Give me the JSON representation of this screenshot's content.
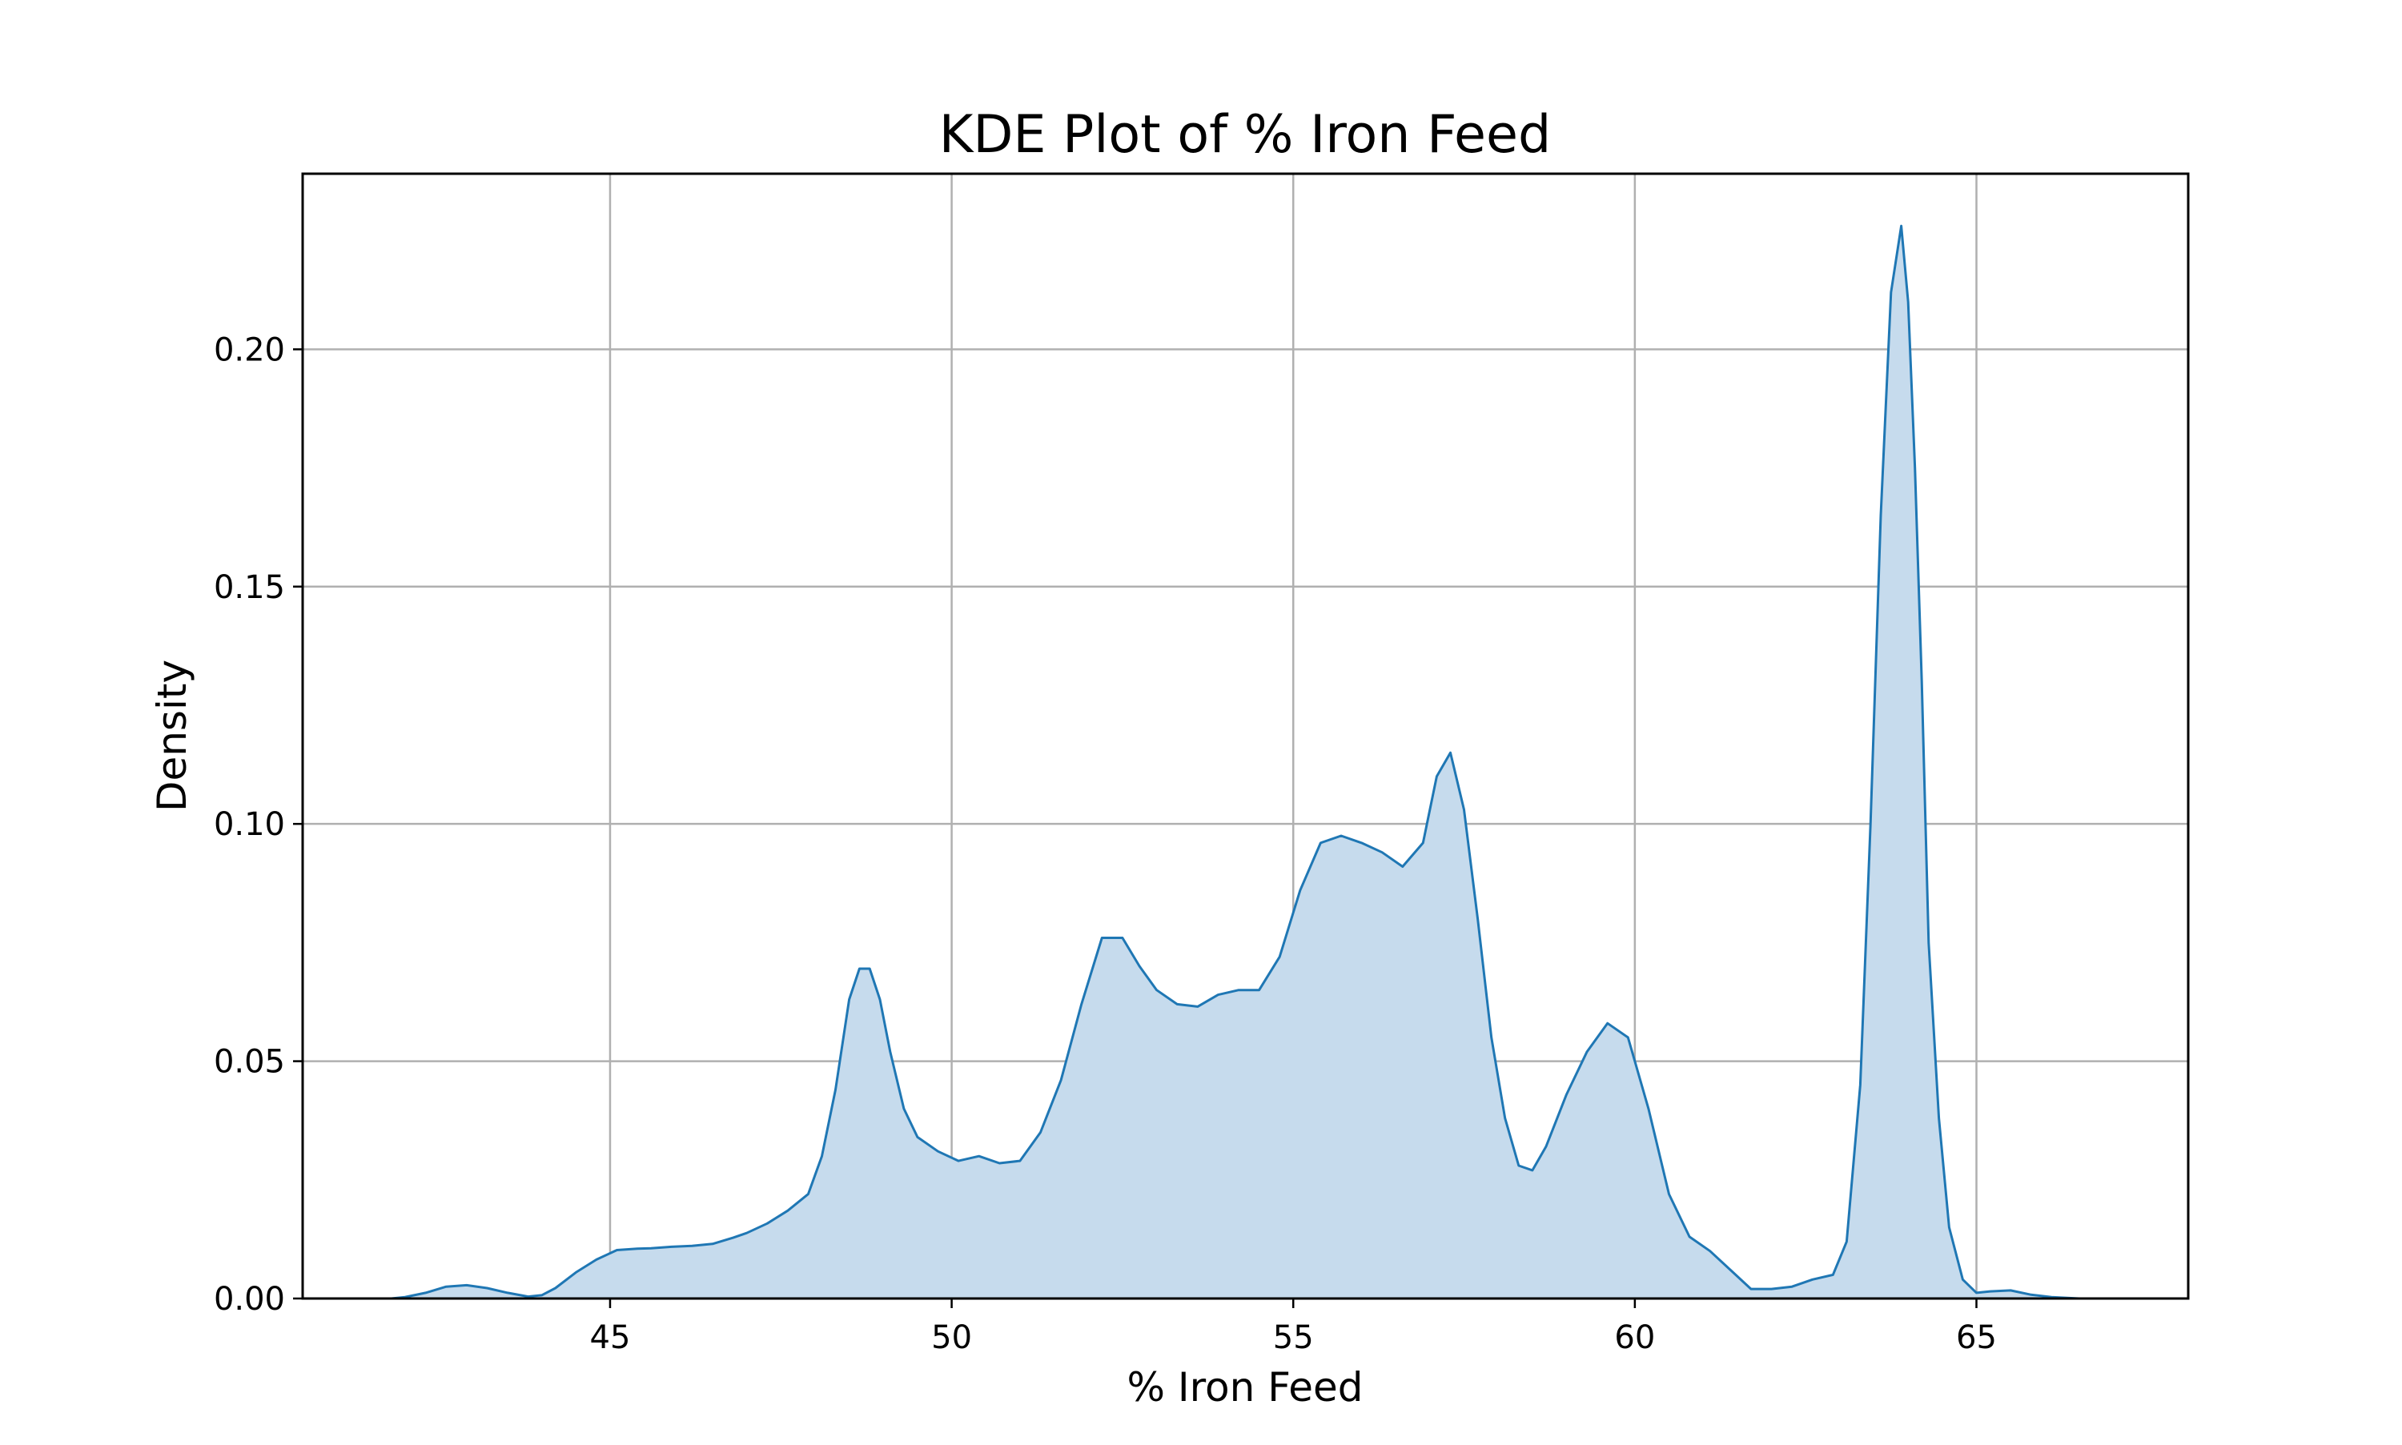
{
  "chart_data": {
    "type": "area",
    "title": "KDE Plot of % Iron Feed",
    "xlabel": "% Iron Feed",
    "ylabel": "Density",
    "xlim": [
      40.5,
      68.1
    ],
    "ylim": [
      0.0,
      0.237
    ],
    "xticks": [
      45,
      50,
      55,
      60,
      65
    ],
    "xtick_labels": [
      "45",
      "50",
      "55",
      "60",
      "65"
    ],
    "yticks": [
      0.0,
      0.05,
      0.1,
      0.15,
      0.2
    ],
    "ytick_labels": [
      "0.00",
      "0.05",
      "0.10",
      "0.15",
      "0.20"
    ],
    "grid": true,
    "legend": "none",
    "colors": {
      "line": "#1f77b4",
      "fill": "#c6dbed",
      "grid": "#b0b0b0"
    },
    "series": [
      {
        "x": [
          41.8,
          42.0,
          42.3,
          42.6,
          42.9,
          43.2,
          43.5,
          43.8,
          44.0,
          44.2,
          44.5,
          44.8,
          45.1,
          45.4,
          45.6,
          45.9,
          46.2,
          46.5,
          46.8,
          47.0,
          47.3,
          47.6,
          47.9,
          48.1,
          48.3,
          48.5,
          48.65,
          48.8,
          48.95,
          49.1,
          49.3,
          49.5,
          49.8,
          50.1,
          50.4,
          50.7,
          51.0,
          51.3,
          51.6,
          51.9,
          52.2,
          52.5,
          52.75,
          53.0,
          53.3,
          53.6,
          53.9,
          54.2,
          54.5,
          54.8,
          55.1,
          55.4,
          55.7,
          56.0,
          56.3,
          56.6,
          56.9,
          57.1,
          57.3,
          57.5,
          57.7,
          57.9,
          58.1,
          58.3,
          58.5,
          58.7,
          59.0,
          59.3,
          59.6,
          59.9,
          60.2,
          60.5,
          60.8,
          61.1,
          61.4,
          61.7,
          62.0,
          62.3,
          62.6,
          62.9,
          63.1,
          63.3,
          63.45,
          63.6,
          63.75,
          63.9,
          64.0,
          64.1,
          64.2,
          64.3,
          64.45,
          64.6,
          64.8,
          65.0,
          65.2,
          65.5,
          65.8,
          66.1,
          66.5,
          66.8
        ],
        "y": [
          0.0,
          0.0003,
          0.0012,
          0.0025,
          0.0028,
          0.0022,
          0.0012,
          0.0004,
          0.0007,
          0.0022,
          0.0055,
          0.0082,
          0.0102,
          0.0105,
          0.0106,
          0.0109,
          0.0111,
          0.0115,
          0.0128,
          0.0138,
          0.0158,
          0.0185,
          0.022,
          0.03,
          0.044,
          0.063,
          0.0695,
          0.0695,
          0.063,
          0.052,
          0.04,
          0.034,
          0.031,
          0.029,
          0.03,
          0.0285,
          0.029,
          0.035,
          0.046,
          0.062,
          0.076,
          0.076,
          0.07,
          0.065,
          0.062,
          0.0615,
          0.064,
          0.065,
          0.065,
          0.072,
          0.086,
          0.096,
          0.0975,
          0.096,
          0.094,
          0.091,
          0.096,
          0.11,
          0.115,
          0.103,
          0.08,
          0.055,
          0.038,
          0.028,
          0.027,
          0.032,
          0.043,
          0.052,
          0.058,
          0.055,
          0.04,
          0.022,
          0.013,
          0.01,
          0.006,
          0.002,
          0.002,
          0.0025,
          0.004,
          0.005,
          0.012,
          0.045,
          0.1,
          0.165,
          0.212,
          0.226,
          0.21,
          0.175,
          0.13,
          0.075,
          0.038,
          0.015,
          0.004,
          0.0012,
          0.0015,
          0.0017,
          0.0008,
          0.0003,
          0.0,
          0.0
        ]
      }
    ]
  }
}
